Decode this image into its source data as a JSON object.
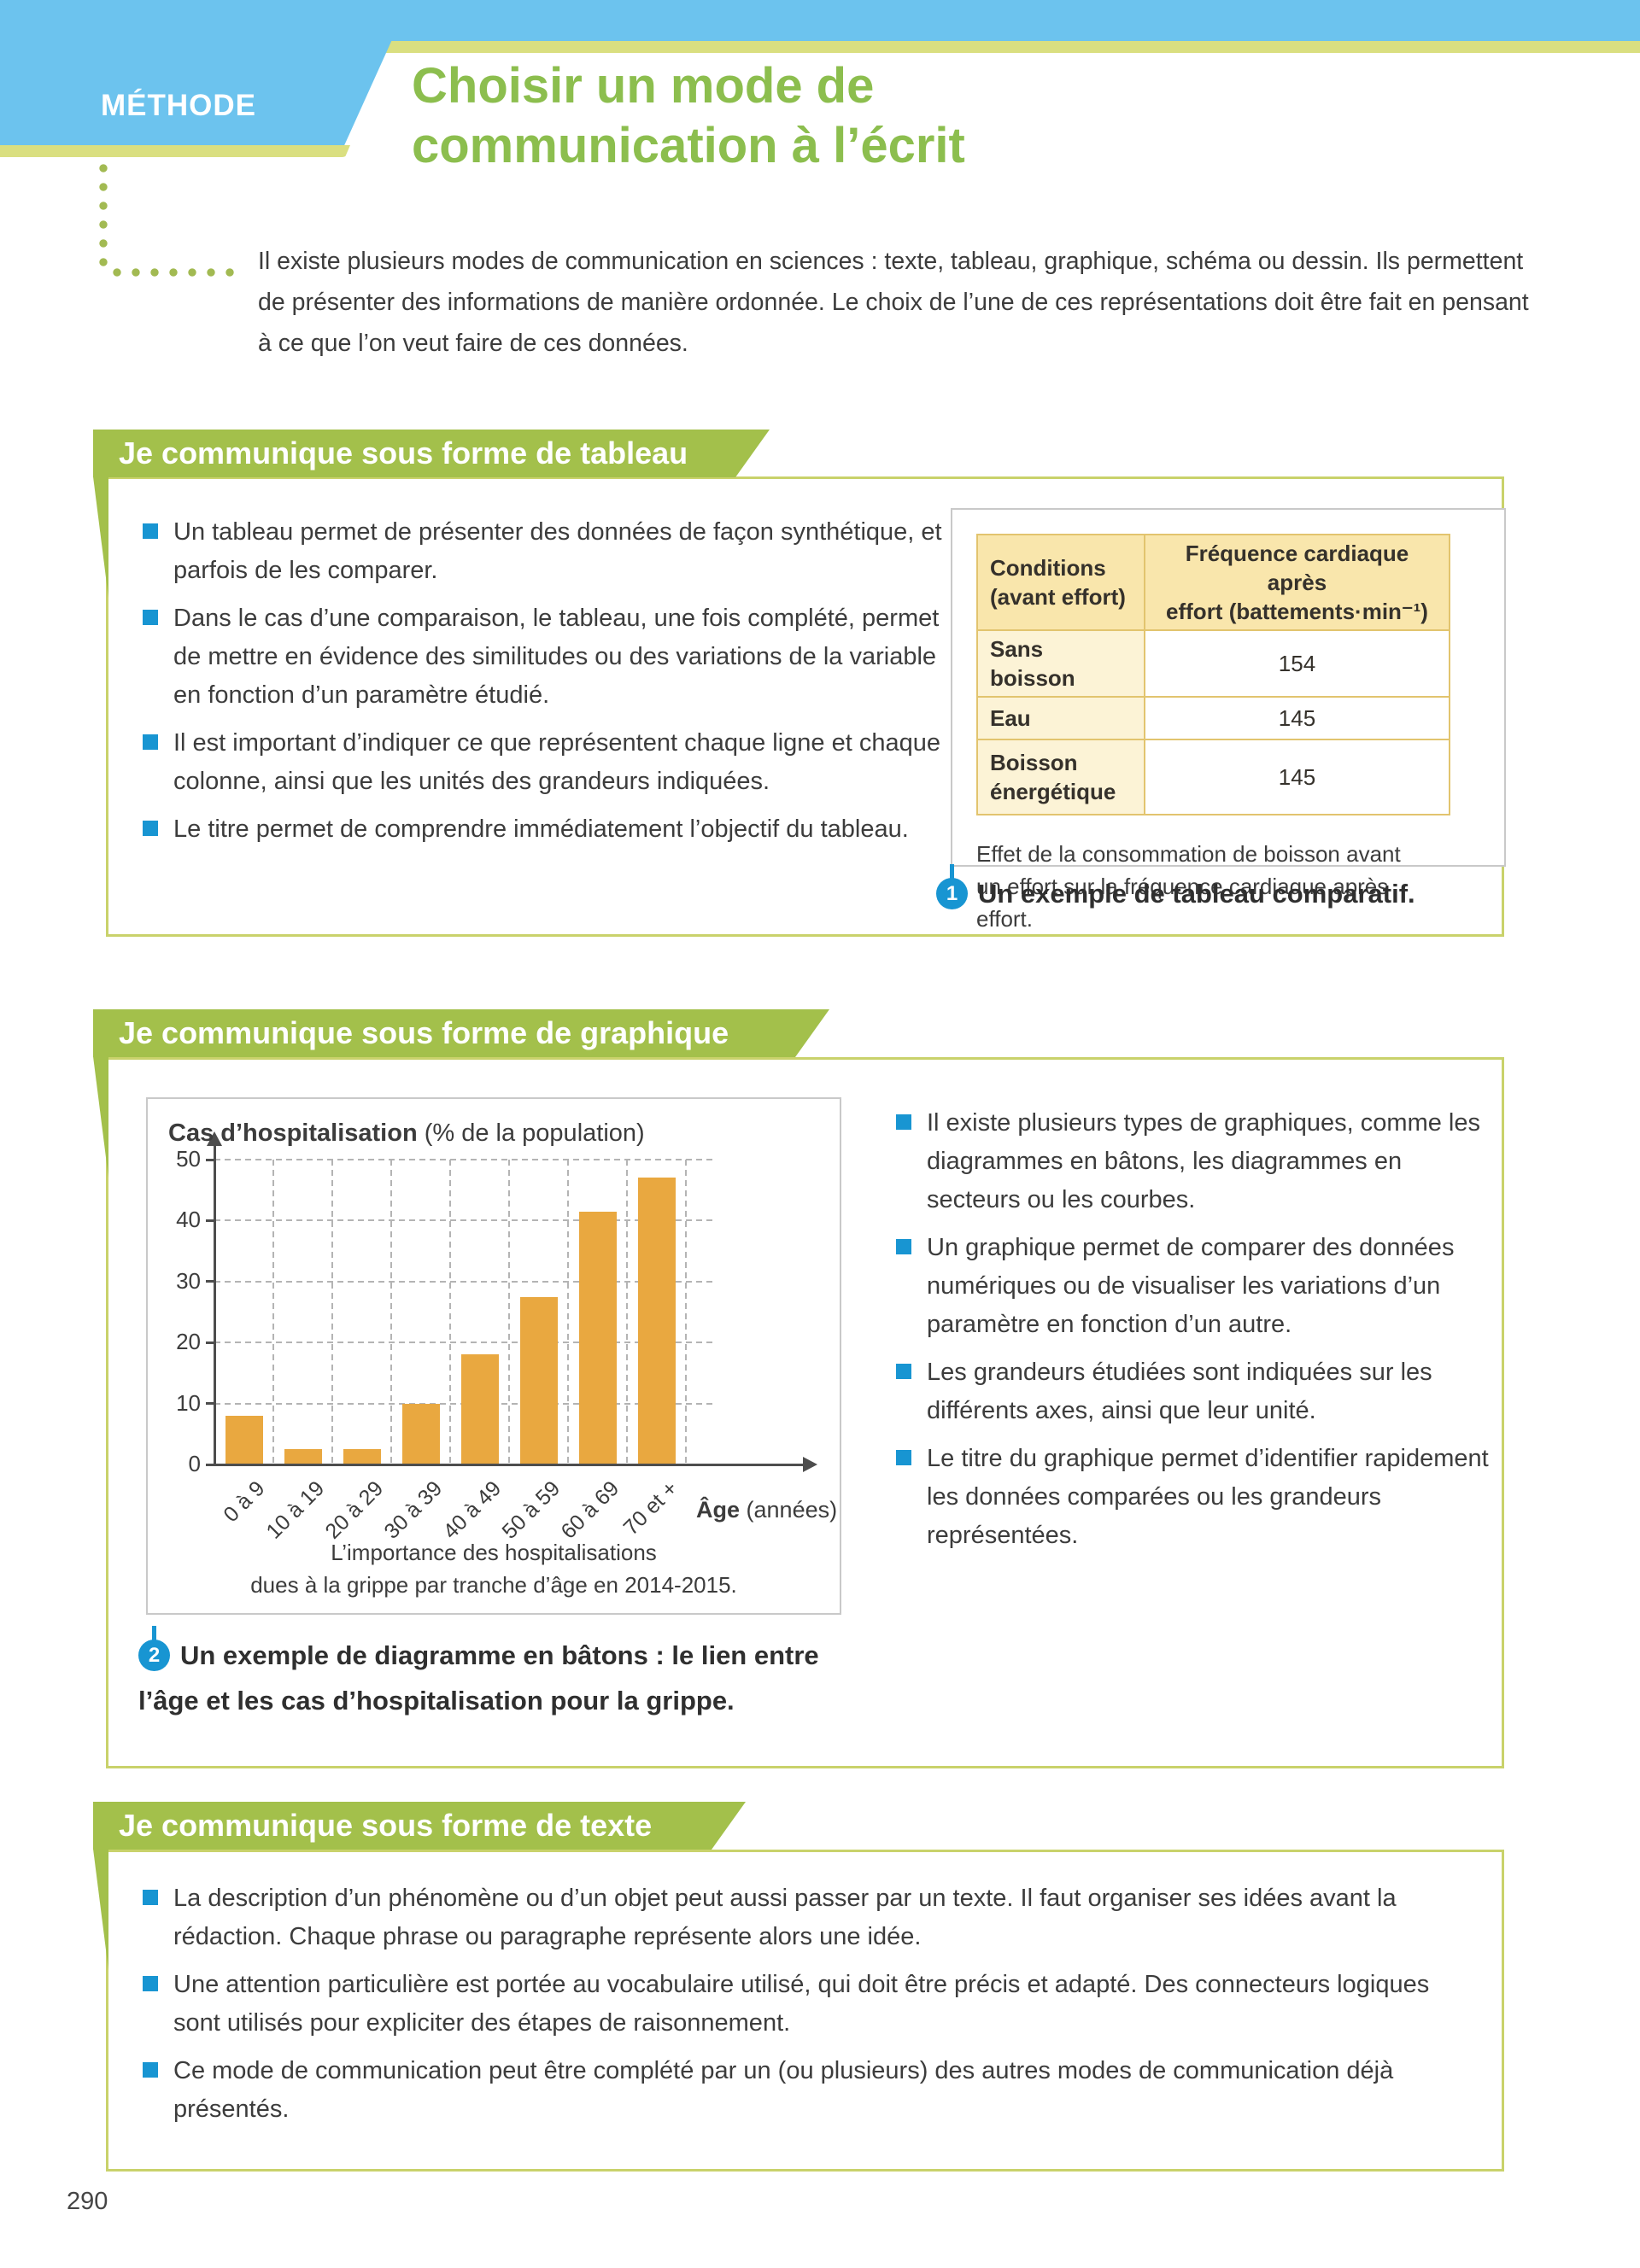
{
  "page_number": "290",
  "header": {
    "kicker": "MÉTHODE",
    "title_line1": "Choisir un mode de",
    "title_line2": "communication à l’écrit",
    "intro": "Il existe plusieurs modes de communication en sciences : texte, tableau, graphique, schéma ou dessin. Ils permettent de présenter des informations de manière ordonnée. Le choix de l’une de ces représentations doit être fait en pensant à ce que l’on veut faire de ces données."
  },
  "colors": {
    "header_blue": "#6CC3EE",
    "band_yellow": "#DADF80",
    "title_green": "#8CBE4E",
    "banner_green": "#A3C04B",
    "box_border_olive": "#C9D26B",
    "bullet_blue": "#1895D2",
    "badge_blue": "#1895D2",
    "bar_orange": "#E9A840",
    "table_border": "#E2C46E",
    "table_header_bg": "#F9E6AC",
    "table_rowhead_bg": "#FCF3D6"
  },
  "sections": [
    {
      "banner": "Je communique sous forme de tableau",
      "bullets": [
        "Un tableau permet de présenter des données de façon synthétique, et parfois de les comparer.",
        "Dans le cas d’une comparaison, le tableau, une fois complété, permet de mettre en évidence des similitudes ou des variations de la variable en fonction d’un paramètre étudié.",
        "Il est important d’indiquer ce que représentent chaque ligne et chaque colonne, ainsi que les unités des grandeurs indiquées.",
        "Le titre permet de comprendre immédiatement l’objectif du tableau."
      ],
      "figure": {
        "table": {
          "headers": [
            "Conditions\n(avant effort)",
            "Fréquence cardiaque après\neffort (battements·min⁻¹)"
          ],
          "rows": [
            [
              "Sans boisson",
              "154"
            ],
            [
              "Eau",
              "145"
            ],
            [
              "Boisson\nénergétique",
              "145"
            ]
          ]
        },
        "caption_in_box": "Effet de la consommation de boisson avant un effort sur la fréquence cardiaque après effort.",
        "badge": "1",
        "caption": "Un exemple de tableau comparatif."
      }
    },
    {
      "banner": "Je communique sous forme de graphique",
      "bullets": [
        "Il existe plusieurs types de graphiques, comme les diagrammes en bâtons, les diagrammes en secteurs ou les courbes.",
        "Un graphique permet de comparer des données numériques ou de visualiser les variations d’un paramètre en fonction d’un autre.",
        "Les grandeurs étudiées sont indiquées sur les différents axes, ainsi que leur unité.",
        "Le titre du graphique permet d’identifier rapidement les données comparées ou les grandeurs représentées."
      ],
      "figure": {
        "badge": "2",
        "caption": "Un exemple de diagramme en bâtons : le lien entre l’âge et les cas d’hospitalisation pour la grippe."
      }
    },
    {
      "banner": "Je communique sous forme de texte",
      "bullets": [
        "La description d’un phénomène ou d’un objet peut aussi passer par un texte. Il faut organiser ses idées avant la rédaction. Chaque phrase ou paragraphe représente alors une idée.",
        "Une attention particulière est portée au vocabulaire utilisé, qui doit être précis et adapté. Des connecteurs logiques sont utilisés pour expliciter des étapes de raisonnement.",
        "Ce mode de communication peut être complété par un (ou plusieurs) des autres modes de communication déjà présentés."
      ]
    }
  ],
  "chart_data": {
    "type": "bar",
    "title": "Cas d’hospitalisation",
    "title_unit": "(% de la population)",
    "categories": [
      "0 à 9",
      "10 à 19",
      "20 à 29",
      "30 à 39",
      "40 à 49",
      "50 à 59",
      "60 à 69",
      "70 et +"
    ],
    "values": [
      8,
      2.5,
      2.5,
      10,
      18,
      27.5,
      41.5,
      47
    ],
    "xlabel_bold": "Âge",
    "xlabel_unit": "(années)",
    "ylabel": "Cas d’hospitalisation (% de la population)",
    "ylim": [
      0,
      50
    ],
    "yticks": [
      0,
      10,
      20,
      30,
      40,
      50
    ],
    "grid": "dashed",
    "legend": "none",
    "bar_color": "#E9A840",
    "caption": "L’importance des hospitalisations\ndues à la grippe par tranche d’âge en 2014-2015."
  }
}
